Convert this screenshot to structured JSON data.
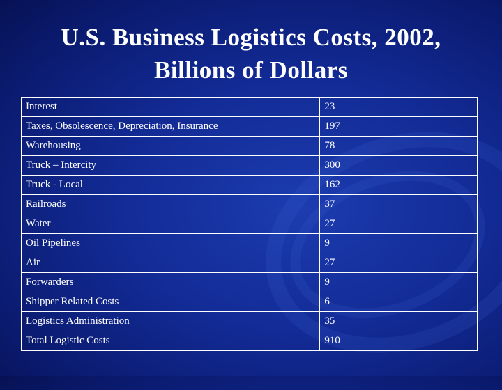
{
  "slide": {
    "title_line1": "U.S. Business Logistics Costs, 2002,",
    "title_line2": "Billions of Dollars"
  },
  "table": {
    "rows": [
      {
        "label": "Interest",
        "value": "23"
      },
      {
        "label": "Taxes, Obsolescence, Depreciation, Insurance",
        "value": "197"
      },
      {
        "label": "Warehousing",
        "value": "78"
      },
      {
        "label": "Truck – Intercity",
        "value": "300"
      },
      {
        "label": "Truck - Local",
        "value": "162"
      },
      {
        "label": "Railroads",
        "value": "37"
      },
      {
        "label": "Water",
        "value": "27"
      },
      {
        "label": "Oil Pipelines",
        "value": "9"
      },
      {
        "label": "Air",
        "value": "27"
      },
      {
        "label": "Forwarders",
        "value": "9"
      },
      {
        "label": "Shipper Related Costs",
        "value": "6"
      },
      {
        "label": "Logistics Administration",
        "value": "35"
      },
      {
        "label": "Total Logistic Costs",
        "value": "910"
      }
    ]
  },
  "colors": {
    "background": "#122a94",
    "text": "#ffffff",
    "border": "#ffffff"
  }
}
